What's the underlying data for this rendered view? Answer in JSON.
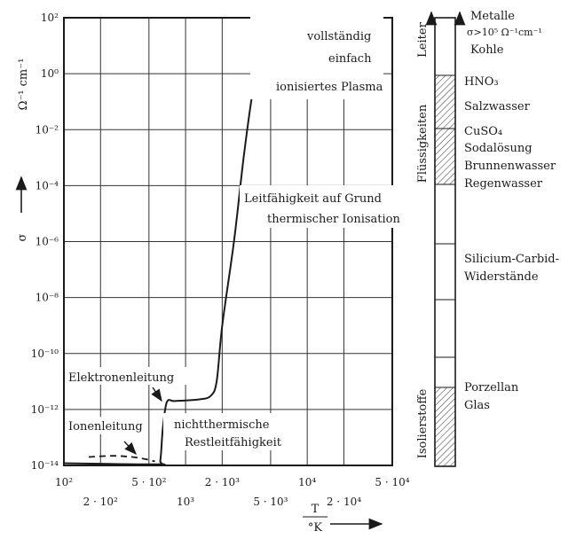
{
  "chart_data": {
    "type": "line",
    "xscale": "log",
    "yscale": "log",
    "xlim": [
      100,
      50000
    ],
    "ylim": [
      1e-14,
      100
    ],
    "grid": true,
    "ylabel": "Ω⁻¹ cm⁻¹",
    "ylabel_symbol": "σ",
    "xlabel_num": "T",
    "xlabel_den": "°K",
    "x_ticks_top": [
      {
        "value": 100,
        "label": "10²"
      },
      {
        "value": 500,
        "label": "5 · 10²"
      },
      {
        "value": 2000,
        "label": "2 · 10³"
      },
      {
        "value": 10000,
        "label": "10⁴"
      },
      {
        "value": 50000,
        "label": "5 · 10⁴"
      }
    ],
    "x_ticks_bottom": [
      {
        "value": 200,
        "label": "2 · 10²"
      },
      {
        "value": 1000,
        "label": "10³"
      },
      {
        "value": 5000,
        "label": "5 · 10³"
      },
      {
        "value": 20000,
        "label": "2 · 10⁴"
      }
    ],
    "y_ticks": [
      {
        "value": 100,
        "label": "10²"
      },
      {
        "value": 1,
        "label": "10⁰"
      },
      {
        "value": 0.01,
        "label": "10⁻²"
      },
      {
        "value": 0.0001,
        "label": "10⁻⁴"
      },
      {
        "value": 1e-06,
        "label": "10⁻⁶"
      },
      {
        "value": 1e-08,
        "label": "10⁻⁸"
      },
      {
        "value": 1e-10,
        "label": "10⁻¹⁰"
      },
      {
        "value": 1e-12,
        "label": "10⁻¹²"
      },
      {
        "value": 1e-14,
        "label": "10⁻¹⁴"
      }
    ],
    "series_dashed": [
      {
        "x": 160,
        "y": 2e-14
      },
      {
        "x": 260,
        "y": 2.2e-14
      },
      {
        "x": 400,
        "y": 1.9e-14
      },
      {
        "x": 560,
        "y": 1.4e-14
      }
    ],
    "series_solid": [
      {
        "x": 100,
        "y": 1.2e-14
      },
      {
        "x": 580,
        "y": 1.1e-14
      },
      {
        "x": 620,
        "y": 1.5e-14
      },
      {
        "x": 650,
        "y": 2e-13
      },
      {
        "x": 700,
        "y": 1.8e-12
      },
      {
        "x": 800,
        "y": 2e-12
      },
      {
        "x": 1000,
        "y": 2.1e-12
      },
      {
        "x": 1300,
        "y": 2.3e-12
      },
      {
        "x": 1600,
        "y": 3e-12
      },
      {
        "x": 1800,
        "y": 1e-11
      },
      {
        "x": 2000,
        "y": 1e-09
      },
      {
        "x": 2500,
        "y": 1e-06
      },
      {
        "x": 3000,
        "y": 0.001
      },
      {
        "x": 3600,
        "y": 0.3
      },
      {
        "x": 4000,
        "y": 1.5
      },
      {
        "x": 4500,
        "y": 1.8
      },
      {
        "x": 5500,
        "y": 2.0
      },
      {
        "x": 7000,
        "y": 5
      },
      {
        "x": 9000,
        "y": 15
      },
      {
        "x": 12000,
        "y": 30
      },
      {
        "x": 20000,
        "y": 40
      },
      {
        "x": 30000,
        "y": 42
      }
    ],
    "annotations": {
      "plasma_line1": "vollständig",
      "plasma_line2": "einfach",
      "plasma_line3": "ionisiertes Plasma",
      "thermal_line1": "Leitfähigkeit auf Grund",
      "thermal_line2": "thermischer Ionisation",
      "electron": "Elektronenleitung",
      "ion": "Ionenleitung",
      "rest_line1": "nichtthermische",
      "rest_line2": "Restleitfähigkeit"
    }
  },
  "scale_bar": {
    "category_leiter": "Leiter",
    "category_fluessig": "Flüssigkeiten",
    "category_isolier": "Isolierstoffe",
    "metalle": "Metalle",
    "metalle_sigma": "σ>10⁵ Ω⁻¹cm⁻¹",
    "kohle": "Kohle",
    "hno3": "HNO₃",
    "salzwasser": "Salzwasser",
    "cuso4": "CuSO₄",
    "soda": "Sodalösung",
    "brunnen": "Brunnenwasser",
    "regen": "Regenwasser",
    "sic1": "Silicium-Carbid-",
    "sic2": "Widerstände",
    "porzellan": "Porzellan",
    "glas": "Glas"
  }
}
